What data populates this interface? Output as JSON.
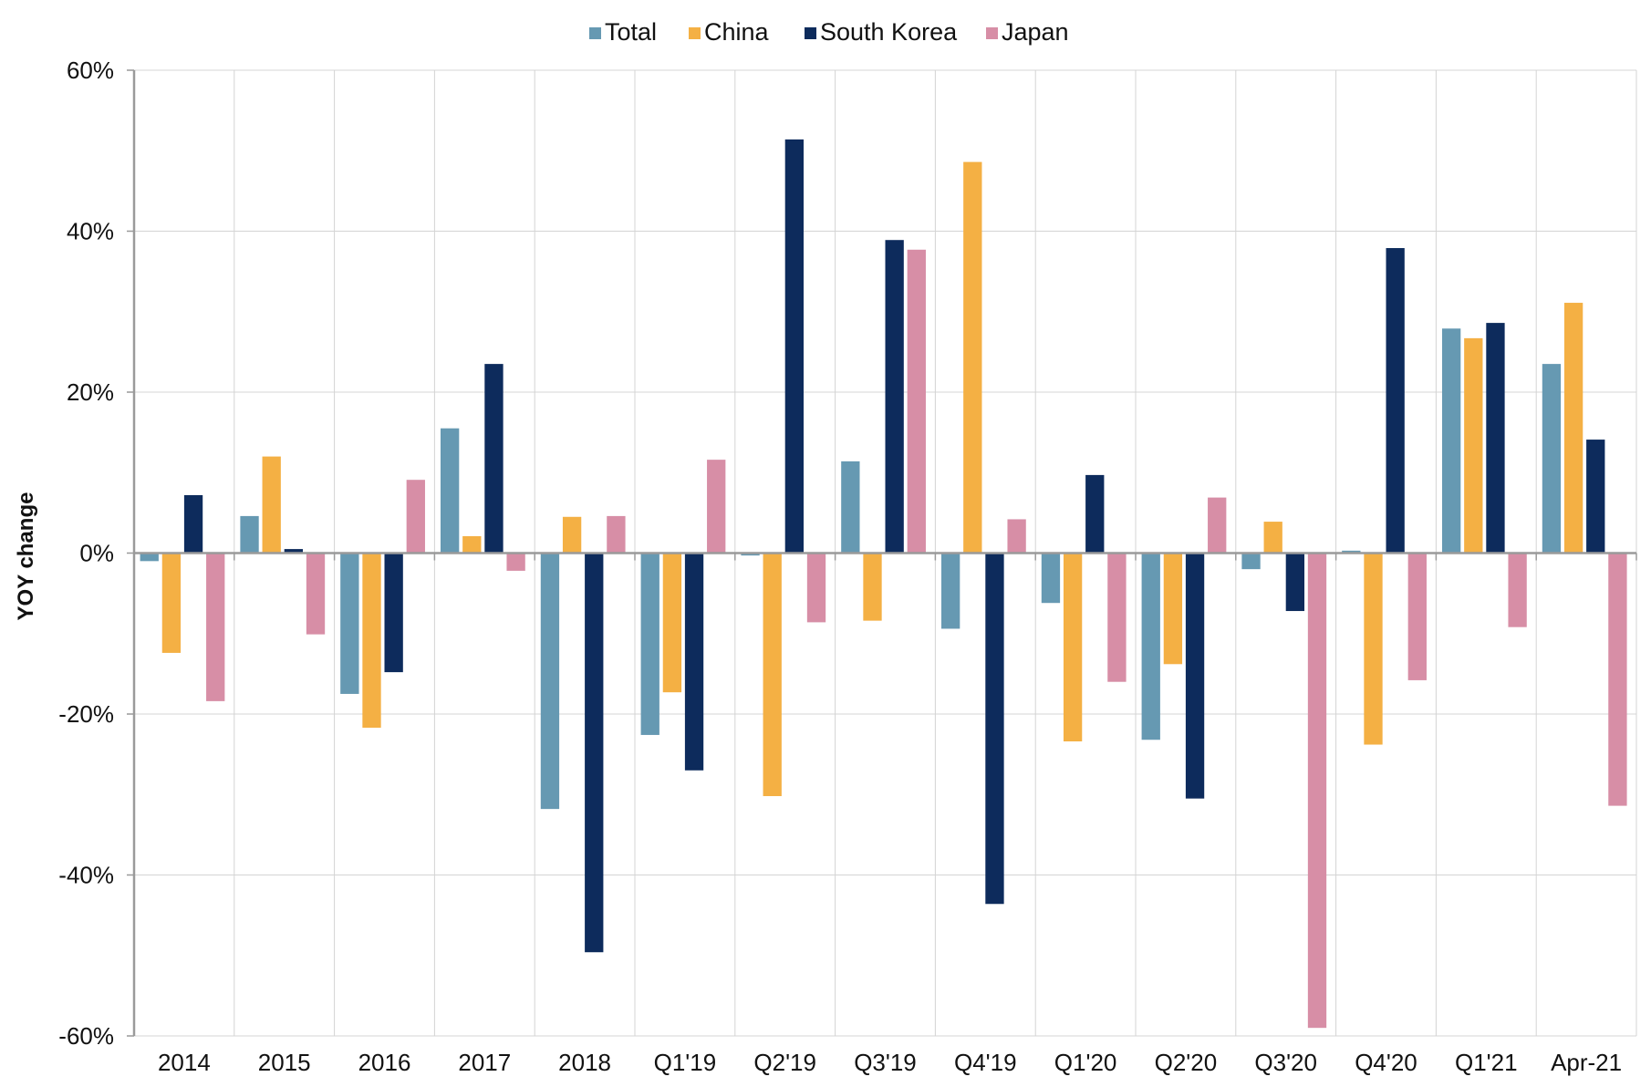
{
  "chart_data": {
    "type": "bar",
    "title": "",
    "xlabel": "",
    "ylabel": "YOY change",
    "ylim": [
      -60,
      60
    ],
    "yticks": [
      -60,
      -40,
      -20,
      0,
      20,
      40,
      60
    ],
    "ytick_labels": [
      "-60%",
      "-40%",
      "-20%",
      "0%",
      "20%",
      "40%",
      "60%"
    ],
    "grid": true,
    "legend_position": "top-center",
    "categories": [
      "2014",
      "2015",
      "2016",
      "2017",
      "2018",
      "Q1'19",
      "Q2'19",
      "Q3'19",
      "Q4'19",
      "Q1'20",
      "Q2'20",
      "Q3'20",
      "Q4'20",
      "Q1'21",
      "Apr-21"
    ],
    "series": [
      {
        "name": "Total",
        "color": "#6699b2",
        "values": [
          -1,
          4.6,
          -17.5,
          15.5,
          -31.8,
          -22.6,
          -0.3,
          11.4,
          -9.4,
          -6.2,
          -23.2,
          -2,
          0.3,
          27.9,
          23.5
        ]
      },
      {
        "name": "China",
        "color": "#f4b044",
        "values": [
          -12.4,
          12,
          -21.7,
          2.1,
          4.5,
          -17.3,
          -30.2,
          -8.4,
          48.6,
          -23.4,
          -13.8,
          3.9,
          -23.8,
          26.7,
          31.1
        ]
      },
      {
        "name": "South Korea",
        "color": "#0d2b5c",
        "values": [
          7.2,
          0.5,
          -14.8,
          23.5,
          -49.6,
          -27,
          51.4,
          38.9,
          -43.6,
          9.7,
          -30.5,
          -7.2,
          37.9,
          28.6,
          14.1
        ]
      },
      {
        "name": "Japan",
        "color": "#d78ea6",
        "values": [
          -18.4,
          -10.1,
          9.1,
          -2.2,
          4.6,
          11.6,
          -8.6,
          37.7,
          4.2,
          -16,
          6.9,
          -59,
          -15.8,
          -9.2,
          -31.4
        ]
      }
    ]
  }
}
